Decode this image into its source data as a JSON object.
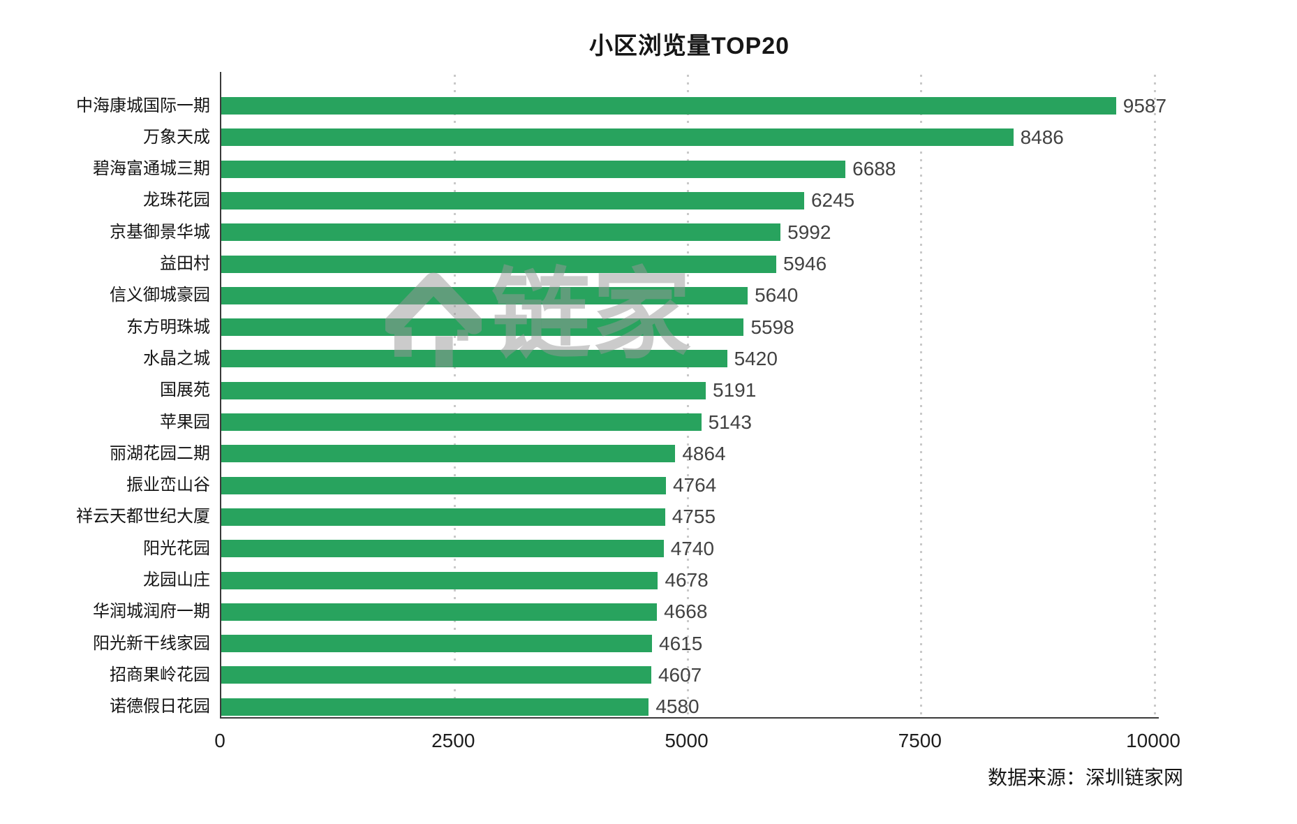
{
  "title": "小区浏览量TOP20",
  "source": "数据来源：深圳链家网",
  "watermark": {
    "icon": "lianjia-house-logo",
    "text": "链家"
  },
  "colors": {
    "bar": "#28a35e",
    "axis": "#3a3a3a",
    "gridline": "#c9c9c9",
    "value_label": "#424242",
    "watermark": "#999999"
  },
  "chart_data": {
    "type": "bar",
    "orientation": "horizontal",
    "title": "小区浏览量TOP20",
    "xlabel": "",
    "ylabel": "",
    "xlim": [
      0,
      10000
    ],
    "x_ticks": [
      0,
      2500,
      5000,
      7500,
      10000
    ],
    "grid": "vertical-dotted",
    "legend": "none",
    "value_labels": true,
    "categories": [
      "中海康城国际一期",
      "万象天成",
      "碧海富通城三期",
      "龙珠花园",
      "京基御景华城",
      "益田村",
      "信义御城豪园",
      "东方明珠城",
      "水晶之城",
      "国展苑",
      "苹果园",
      "丽湖花园二期",
      "振业峦山谷",
      "祥云天都世纪大厦",
      "阳光花园",
      "龙园山庄",
      "华润城润府一期",
      "阳光新干线家园",
      "招商果岭花园",
      "诺德假日花园"
    ],
    "values": [
      9587,
      8486,
      6688,
      6245,
      5992,
      5946,
      5640,
      5598,
      5420,
      5191,
      5143,
      4864,
      4764,
      4755,
      4740,
      4678,
      4668,
      4615,
      4607,
      4580
    ]
  }
}
